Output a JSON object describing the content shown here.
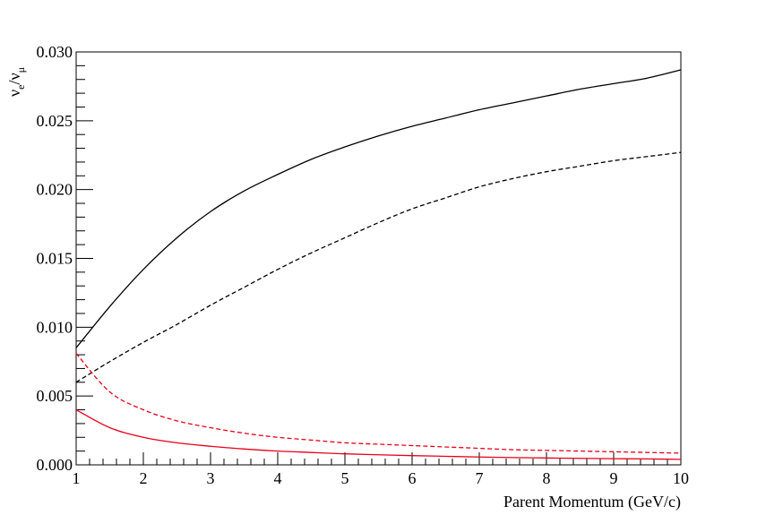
{
  "chart_data": {
    "type": "line",
    "title": "",
    "xlabel": "Parent Momentum (GeV/c)",
    "ylabel": {
      "main": "ν",
      "sub1": "e",
      "slash": "/",
      "main2": "ν",
      "sub2": "μ"
    },
    "xlim": [
      1,
      10
    ],
    "ylim": [
      0.0,
      0.03
    ],
    "x_ticks": [
      1,
      2,
      3,
      4,
      5,
      6,
      7,
      8,
      9,
      10
    ],
    "x_tick_labels": [
      "1",
      "2",
      "3",
      "4",
      "5",
      "6",
      "7",
      "8",
      "9",
      "10"
    ],
    "y_ticks": [
      0.0,
      0.005,
      0.01,
      0.015,
      0.02,
      0.025,
      0.03
    ],
    "y_tick_labels": [
      "0.000",
      "0.005",
      "0.010",
      "0.015",
      "0.020",
      "0.025",
      "0.030"
    ],
    "grid": false,
    "legend": "none",
    "x": [
      1,
      1.5,
      2,
      2.5,
      3,
      3.5,
      4,
      4.5,
      5,
      5.5,
      6,
      6.5,
      7,
      7.5,
      8,
      8.5,
      9,
      9.5,
      10
    ],
    "series": [
      {
        "color": "#000000",
        "dash": "solid",
        "values": [
          0.0085,
          0.0115,
          0.0142,
          0.0165,
          0.0184,
          0.0199,
          0.0211,
          0.0222,
          0.0231,
          0.0239,
          0.0246,
          0.0252,
          0.0258,
          0.0263,
          0.0268,
          0.0273,
          0.0277,
          0.0281,
          0.0287
        ]
      },
      {
        "color": "#000000",
        "dash": "dashed",
        "values": [
          0.006,
          0.0075,
          0.0089,
          0.0102,
          0.0116,
          0.0129,
          0.0142,
          0.0154,
          0.0165,
          0.0176,
          0.0186,
          0.0194,
          0.0202,
          0.0208,
          0.0213,
          0.0217,
          0.0221,
          0.0224,
          0.0227
        ]
      },
      {
        "color": "#e8001a",
        "dash": "dashed",
        "values": [
          0.0081,
          0.0053,
          0.004,
          0.0032,
          0.0027,
          0.0023,
          0.002,
          0.0018,
          0.0016,
          0.0015,
          0.0014,
          0.0013,
          0.0012,
          0.0011,
          0.00105,
          0.001,
          0.00095,
          0.0009,
          0.00085
        ]
      },
      {
        "color": "#e8001a",
        "dash": "solid",
        "values": [
          0.004,
          0.0027,
          0.002,
          0.0016,
          0.00135,
          0.00115,
          0.001,
          0.0009,
          0.0008,
          0.00073,
          0.00067,
          0.00062,
          0.00057,
          0.00053,
          0.0005,
          0.00047,
          0.00045,
          0.00043,
          0.0004
        ]
      }
    ]
  }
}
